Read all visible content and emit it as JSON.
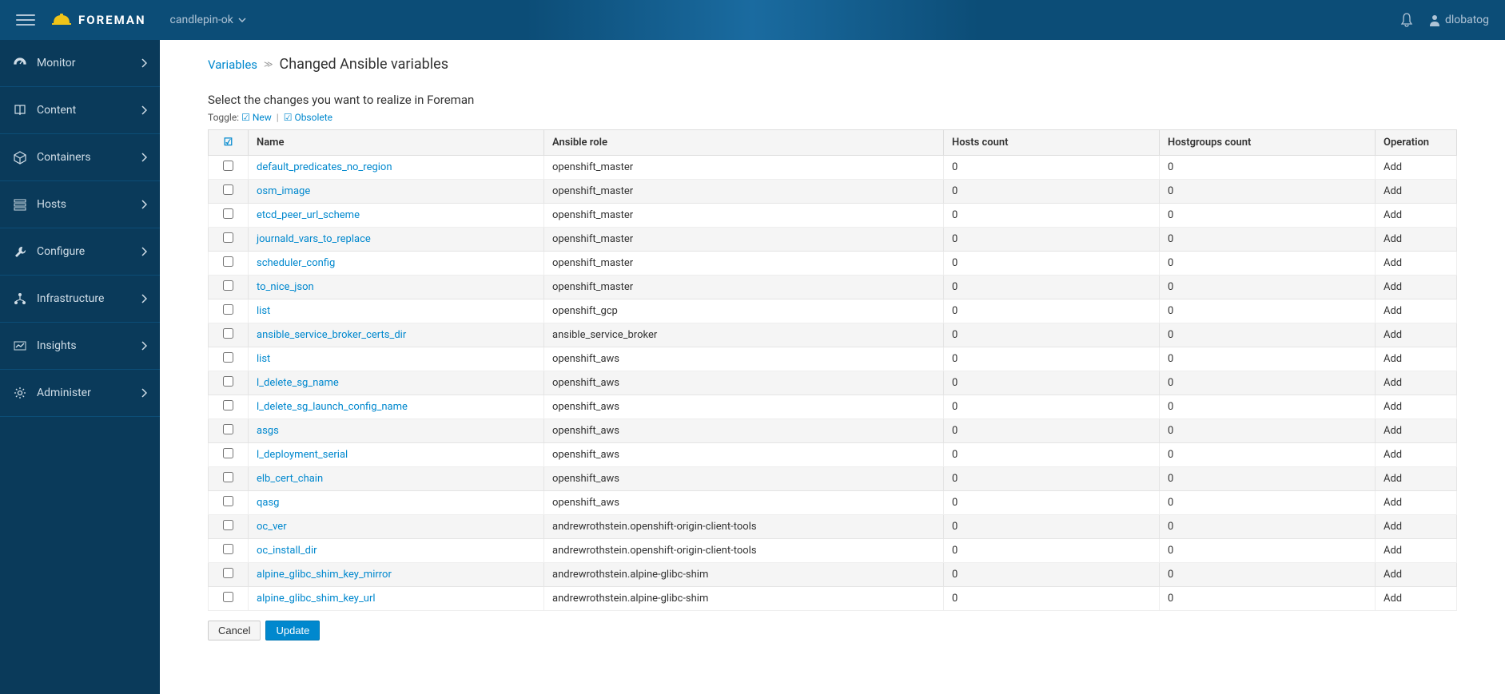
{
  "brand": {
    "name": "FOREMAN"
  },
  "org_switcher": {
    "label": "candlepin-ok"
  },
  "user": {
    "name": "dlobatog"
  },
  "sidebar": {
    "items": [
      {
        "label": "Monitor",
        "icon": "dashboard-icon"
      },
      {
        "label": "Content",
        "icon": "book-icon"
      },
      {
        "label": "Containers",
        "icon": "cube-icon"
      },
      {
        "label": "Hosts",
        "icon": "server-icon"
      },
      {
        "label": "Configure",
        "icon": "wrench-icon"
      },
      {
        "label": "Infrastructure",
        "icon": "network-icon"
      },
      {
        "label": "Insights",
        "icon": "insights-icon"
      },
      {
        "label": "Administer",
        "icon": "gear-icon"
      }
    ]
  },
  "breadcrumb": {
    "parent": "Variables",
    "current": "Changed Ansible variables"
  },
  "instructions": "Select the changes you want to realize in Foreman",
  "toggle": {
    "prefix": "Toggle:",
    "new": "New",
    "obsolete": "Obsolete"
  },
  "table": {
    "columns": {
      "name": "Name",
      "role": "Ansible role",
      "hosts": "Hosts count",
      "hostgroups": "Hostgroups count",
      "operation": "Operation"
    },
    "rows": [
      {
        "name": "default_predicates_no_region",
        "role": "openshift_master",
        "hosts": 0,
        "hostgroups": 0,
        "op": "Add"
      },
      {
        "name": "osm_image",
        "role": "openshift_master",
        "hosts": 0,
        "hostgroups": 0,
        "op": "Add"
      },
      {
        "name": "etcd_peer_url_scheme",
        "role": "openshift_master",
        "hosts": 0,
        "hostgroups": 0,
        "op": "Add"
      },
      {
        "name": "journald_vars_to_replace",
        "role": "openshift_master",
        "hosts": 0,
        "hostgroups": 0,
        "op": "Add"
      },
      {
        "name": "scheduler_config",
        "role": "openshift_master",
        "hosts": 0,
        "hostgroups": 0,
        "op": "Add"
      },
      {
        "name": "to_nice_json",
        "role": "openshift_master",
        "hosts": 0,
        "hostgroups": 0,
        "op": "Add"
      },
      {
        "name": "list",
        "role": "openshift_gcp",
        "hosts": 0,
        "hostgroups": 0,
        "op": "Add"
      },
      {
        "name": "ansible_service_broker_certs_dir",
        "role": "ansible_service_broker",
        "hosts": 0,
        "hostgroups": 0,
        "op": "Add"
      },
      {
        "name": "list",
        "role": "openshift_aws",
        "hosts": 0,
        "hostgroups": 0,
        "op": "Add"
      },
      {
        "name": "l_delete_sg_name",
        "role": "openshift_aws",
        "hosts": 0,
        "hostgroups": 0,
        "op": "Add"
      },
      {
        "name": "l_delete_sg_launch_config_name",
        "role": "openshift_aws",
        "hosts": 0,
        "hostgroups": 0,
        "op": "Add"
      },
      {
        "name": "asgs",
        "role": "openshift_aws",
        "hosts": 0,
        "hostgroups": 0,
        "op": "Add"
      },
      {
        "name": "l_deployment_serial",
        "role": "openshift_aws",
        "hosts": 0,
        "hostgroups": 0,
        "op": "Add"
      },
      {
        "name": "elb_cert_chain",
        "role": "openshift_aws",
        "hosts": 0,
        "hostgroups": 0,
        "op": "Add"
      },
      {
        "name": "qasg",
        "role": "openshift_aws",
        "hosts": 0,
        "hostgroups": 0,
        "op": "Add"
      },
      {
        "name": "oc_ver",
        "role": "andrewrothstein.openshift-origin-client-tools",
        "hosts": 0,
        "hostgroups": 0,
        "op": "Add"
      },
      {
        "name": "oc_install_dir",
        "role": "andrewrothstein.openshift-origin-client-tools",
        "hosts": 0,
        "hostgroups": 0,
        "op": "Add"
      },
      {
        "name": "alpine_glibc_shim_key_mirror",
        "role": "andrewrothstein.alpine-glibc-shim",
        "hosts": 0,
        "hostgroups": 0,
        "op": "Add"
      },
      {
        "name": "alpine_glibc_shim_key_url",
        "role": "andrewrothstein.alpine-glibc-shim",
        "hosts": 0,
        "hostgroups": 0,
        "op": "Add"
      }
    ]
  },
  "actions": {
    "cancel": "Cancel",
    "update": "Update"
  },
  "colors": {
    "navbar_from": "#0c4d77",
    "sidebar_bg": "#0a3a5a",
    "link": "#0088ce",
    "row_alt": "#f5f5f5",
    "border": "#ddd"
  }
}
